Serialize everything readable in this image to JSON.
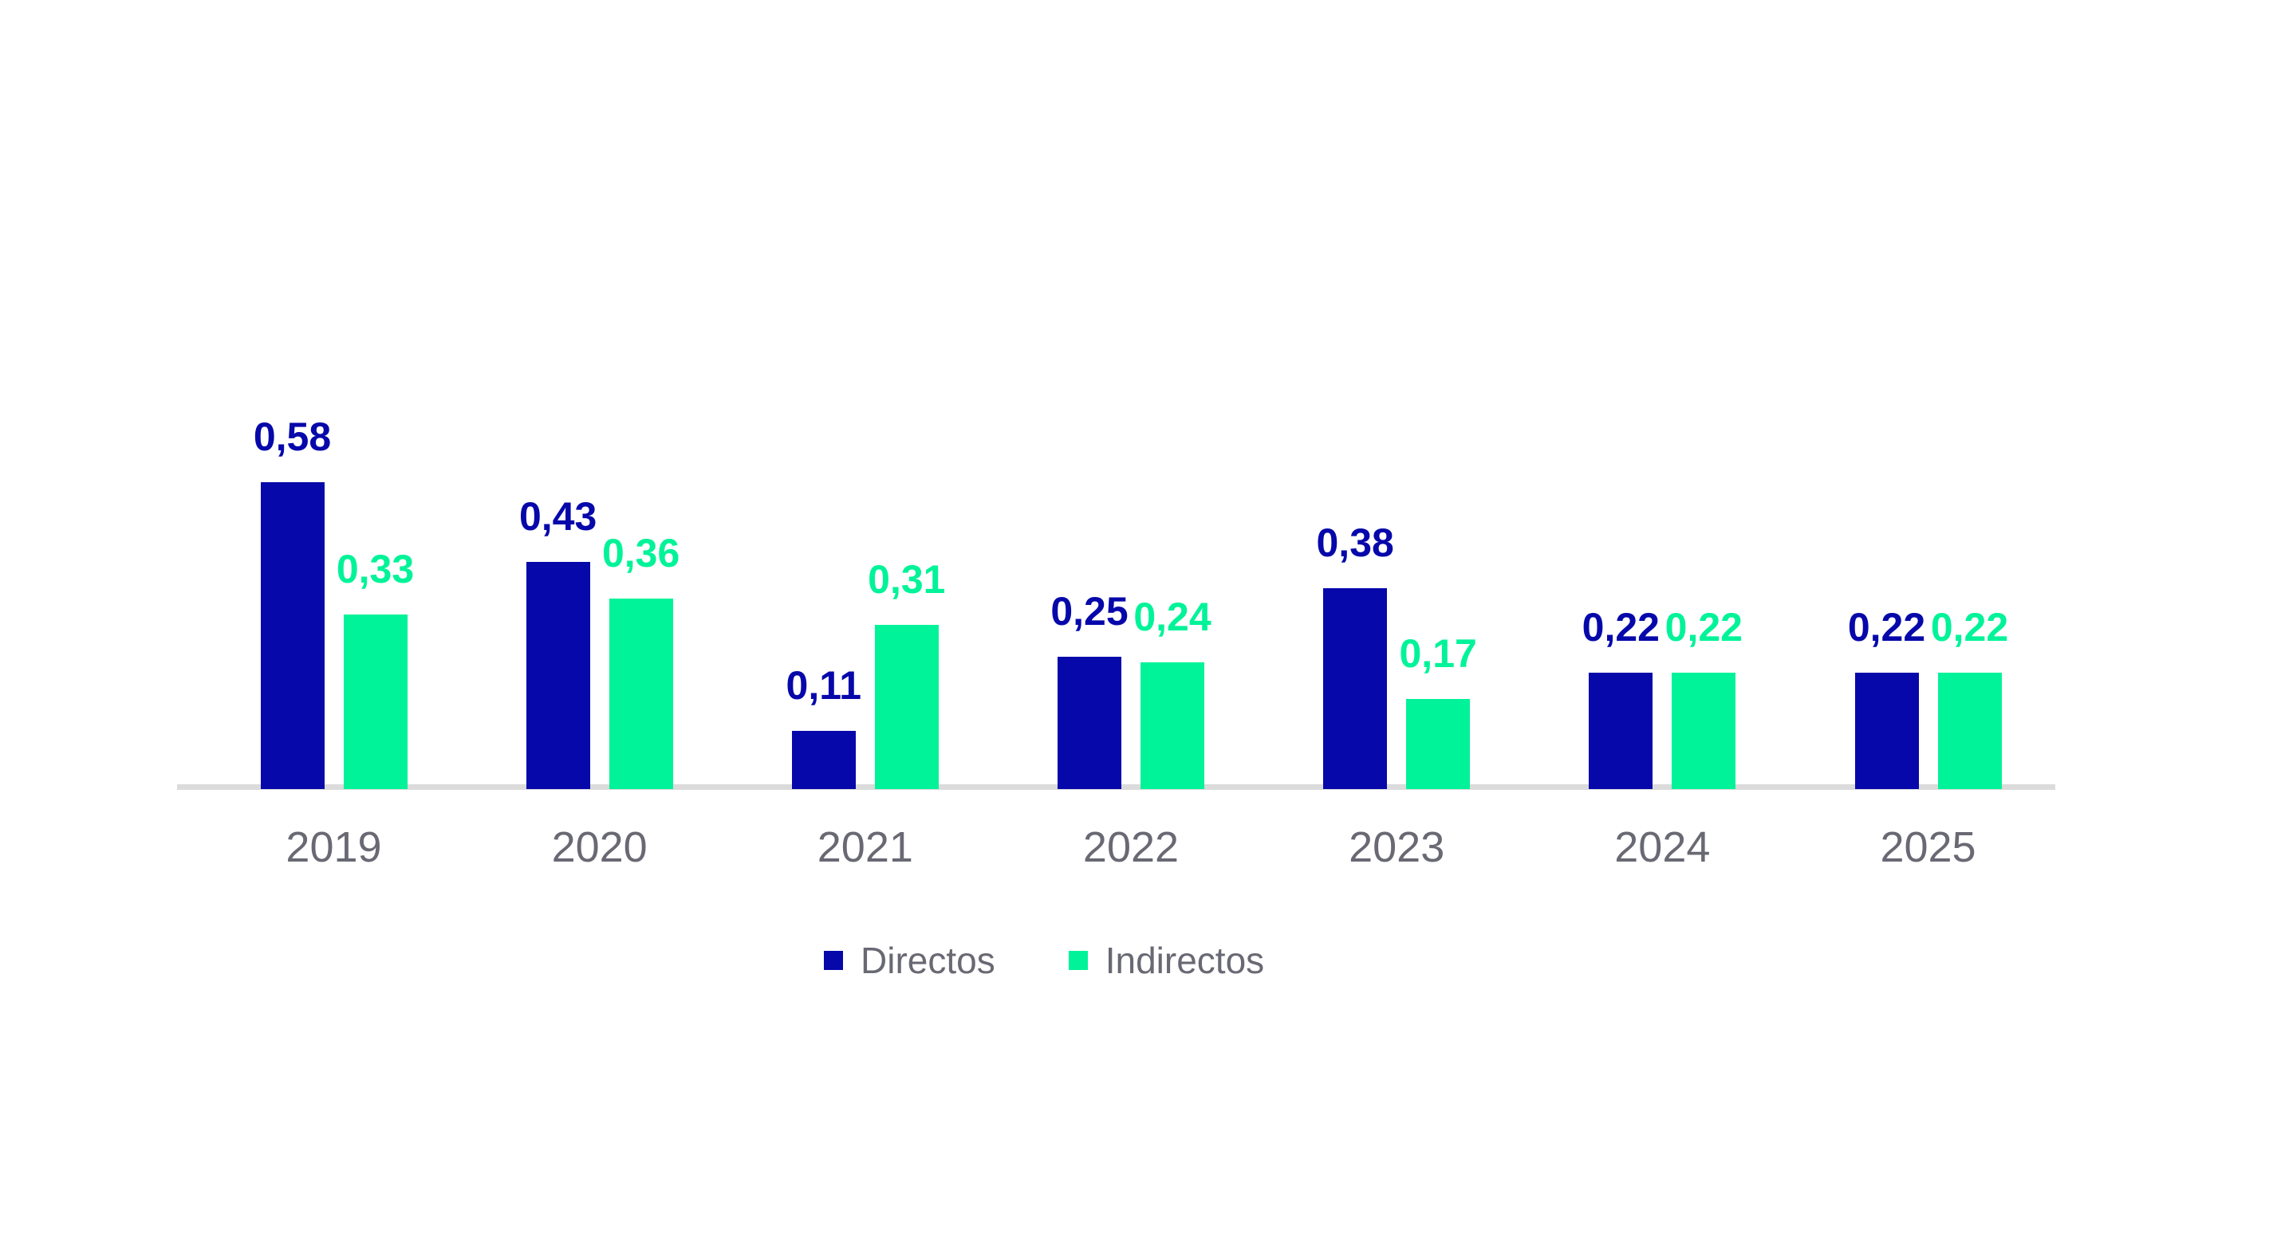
{
  "chart_data": {
    "type": "bar",
    "title": "",
    "xlabel": "",
    "ylabel": "",
    "categories": [
      "2019",
      "2020",
      "2021",
      "2022",
      "2023",
      "2024",
      "2025"
    ],
    "series": [
      {
        "name": "Directos",
        "color": "#0608AA",
        "values": [
          0.58,
          0.43,
          0.11,
          0.25,
          0.38,
          0.22,
          0.22
        ]
      },
      {
        "name": "Indirectos",
        "color": "#00F398",
        "values": [
          0.33,
          0.36,
          0.31,
          0.24,
          0.17,
          0.22,
          0.22
        ]
      }
    ],
    "decimal_separator": ",",
    "value_labels_shown": true,
    "ylim": [
      0,
      0.65
    ],
    "grid": false,
    "y_axis_visible": false,
    "legend_position": "bottom",
    "axis_line_color": "#DBDBDB",
    "tick_label_color": "#696974",
    "legend_text_color": "#696974",
    "background": "#FFFFFF"
  }
}
